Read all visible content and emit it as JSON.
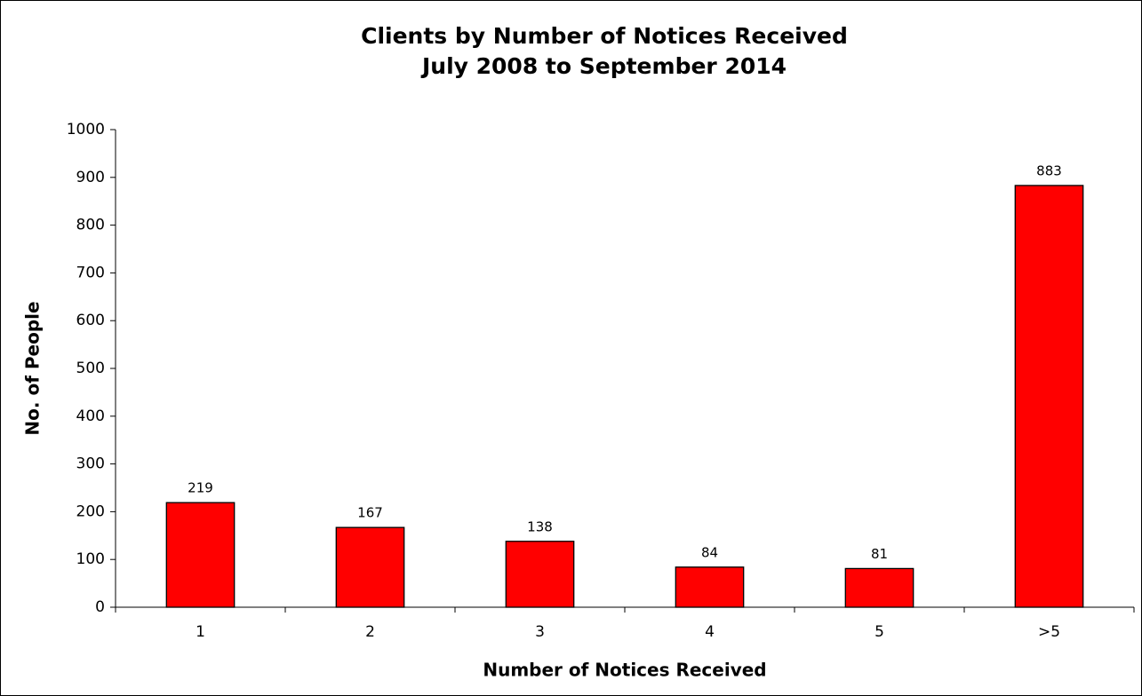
{
  "chart_data": {
    "type": "bar",
    "title": "Clients by Number of Notices Received",
    "subtitle": "July 2008 to September 2014",
    "x_label": "Number of Notices Received",
    "y_label": "No. of People",
    "categories": [
      "1",
      "2",
      "3",
      "4",
      "5",
      ">5"
    ],
    "values": [
      219,
      167,
      138,
      84,
      81,
      883
    ],
    "color": "#ff0000",
    "ylim": [
      0,
      1000
    ],
    "yticks": [
      0,
      100,
      200,
      300,
      400,
      500,
      600,
      700,
      800,
      900,
      1000
    ],
    "grid": false
  }
}
